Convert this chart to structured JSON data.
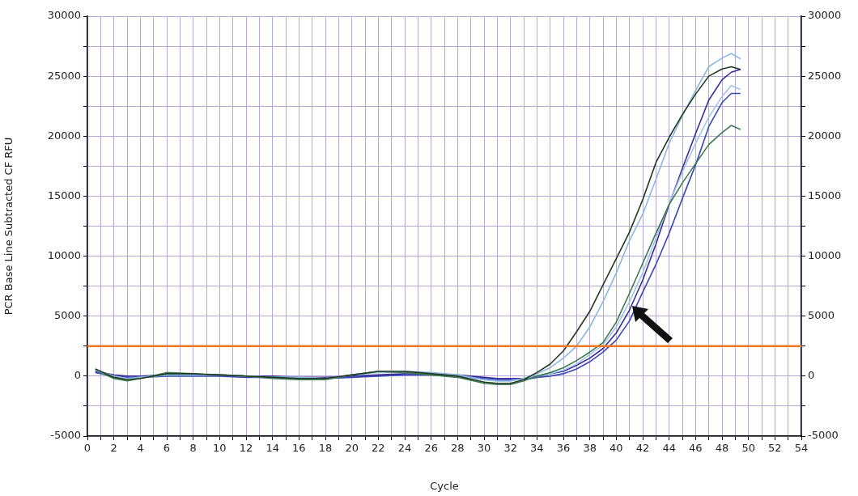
{
  "chart_data": {
    "type": "line",
    "xlabel": "Cycle",
    "ylabel": "PCR Base Line Subtracted CF RFU",
    "x": [
      0.6,
      2,
      3,
      4,
      6,
      8,
      10,
      12,
      14,
      16,
      18,
      20,
      22,
      24,
      26,
      28,
      30,
      31,
      32,
      33,
      34,
      35,
      36,
      37,
      38,
      39,
      40,
      41,
      42,
      43,
      44,
      45,
      46,
      47,
      48,
      48.7,
      49.4
    ],
    "series": [
      {
        "color": "#203a20",
        "values": [
          600,
          -100,
          -300,
          -200,
          200,
          200,
          100,
          0,
          -100,
          -200,
          -200,
          100,
          400,
          400,
          200,
          0,
          -500,
          -600,
          -600,
          -300,
          300,
          1000,
          2100,
          3700,
          5400,
          7600,
          9800,
          12000,
          14700,
          17800,
          19900,
          21800,
          23500,
          25000,
          25600,
          25780,
          25560
        ]
      },
      {
        "color": "#8ab8e0",
        "values": [
          500,
          0,
          -200,
          -100,
          100,
          100,
          100,
          0,
          -100,
          -100,
          -200,
          100,
          400,
          400,
          300,
          100,
          -300,
          -400,
          -400,
          -200,
          200,
          700,
          1500,
          2500,
          4100,
          6200,
          8600,
          11300,
          13500,
          16400,
          19400,
          21700,
          23800,
          25800,
          26500,
          26890,
          26440
        ]
      },
      {
        "color": "#3c7a50",
        "values": [
          500,
          -200,
          -400,
          -200,
          300,
          200,
          100,
          0,
          -200,
          -300,
          -300,
          100,
          400,
          300,
          100,
          -100,
          -600,
          -700,
          -700,
          -400,
          0,
          300,
          700,
          1300,
          2000,
          2800,
          4500,
          6900,
          9400,
          11900,
          14300,
          16100,
          17700,
          19300,
          20300,
          20890,
          20560
        ]
      },
      {
        "color": "#a0c4e8",
        "values": [
          500,
          0,
          -200,
          -100,
          100,
          100,
          100,
          0,
          -100,
          -100,
          -200,
          100,
          300,
          300,
          200,
          0,
          -300,
          -400,
          -400,
          -200,
          0,
          200,
          500,
          1000,
          1800,
          2600,
          4100,
          6200,
          8600,
          11500,
          14400,
          17000,
          19400,
          21600,
          23300,
          24220,
          23890
        ]
      },
      {
        "color": "#3a2a9a",
        "values": [
          400,
          100,
          0,
          0,
          100,
          100,
          100,
          0,
          0,
          -100,
          -100,
          0,
          100,
          200,
          200,
          100,
          -100,
          -200,
          -200,
          -200,
          0,
          200,
          400,
          900,
          1500,
          2300,
          3600,
          5500,
          8000,
          11000,
          14300,
          17300,
          20200,
          23000,
          24700,
          25330,
          25560
        ]
      },
      {
        "color": "#3848b8",
        "values": [
          300,
          0,
          -100,
          -100,
          0,
          0,
          0,
          -100,
          -100,
          -200,
          -200,
          -100,
          0,
          100,
          100,
          0,
          -200,
          -300,
          -300,
          -300,
          -100,
          0,
          200,
          600,
          1200,
          2000,
          3000,
          4600,
          7000,
          9300,
          11900,
          14800,
          17600,
          20800,
          22800,
          23560,
          23560
        ]
      }
    ],
    "xlim": [
      0,
      54
    ],
    "xticks": [
      0,
      {
        "value": 1,
        "label": null
      },
      2,
      {
        "value": 3,
        "label": null
      },
      4,
      {
        "value": 5,
        "label": null
      },
      6,
      {
        "value": 7,
        "label": null
      },
      8,
      {
        "value": 9,
        "label": null
      },
      10,
      {
        "value": 11,
        "label": null
      },
      12,
      {
        "value": 13,
        "label": null
      },
      14,
      {
        "value": 15,
        "label": null
      },
      16,
      {
        "value": 17,
        "label": null
      },
      18,
      {
        "value": 19,
        "label": null
      },
      20,
      {
        "value": 21,
        "label": null
      },
      22,
      {
        "value": 23,
        "label": null
      },
      24,
      {
        "value": 25,
        "label": null
      },
      26,
      {
        "value": 27,
        "label": null
      },
      28,
      {
        "value": 29,
        "label": null
      },
      30,
      {
        "value": 31,
        "label": null
      },
      32,
      {
        "value": 33,
        "label": null
      },
      34,
      {
        "value": 35,
        "label": null
      },
      36,
      {
        "value": 37,
        "label": null
      },
      38,
      {
        "value": 39,
        "label": null
      },
      40,
      {
        "value": 41,
        "label": null
      },
      42,
      {
        "value": 43,
        "label": null
      },
      44,
      {
        "value": 45,
        "label": null
      },
      46,
      {
        "value": 47,
        "label": null
      },
      48,
      {
        "value": 49,
        "label": null
      },
      50,
      {
        "value": 51,
        "label": null
      },
      52,
      {
        "value": 53,
        "label": null
      },
      54
    ],
    "ylim": [
      -5000,
      30000
    ],
    "yticks": [
      -5000,
      {
        "value": -2500,
        "label": null
      },
      0,
      {
        "value": 2500,
        "label": null
      },
      5000,
      {
        "value": 7500,
        "label": null
      },
      10000,
      {
        "value": 12500,
        "label": null
      },
      15000,
      {
        "value": 17500,
        "label": null
      },
      20000,
      {
        "value": 22500,
        "label": null
      },
      25000,
      {
        "value": 27500,
        "label": null
      },
      30000
    ],
    "y2lim": [
      -5000,
      30000
    ],
    "y2ticks": [
      -5000,
      {
        "value": -2500,
        "label": null
      },
      0,
      {
        "value": 2500,
        "label": null
      },
      5000,
      {
        "value": 7500,
        "label": null
      },
      10000,
      {
        "value": 12500,
        "label": null
      },
      15000,
      {
        "value": 17500,
        "label": null
      },
      20000,
      {
        "value": 22500,
        "label": null
      },
      25000,
      {
        "value": 27500,
        "label": null
      },
      30000
    ],
    "ref_lines": [
      {
        "axis": "y",
        "value": 2500,
        "color": "#f07820"
      }
    ],
    "grid": true,
    "legend": false,
    "marker": "none",
    "line_style": "solid"
  }
}
